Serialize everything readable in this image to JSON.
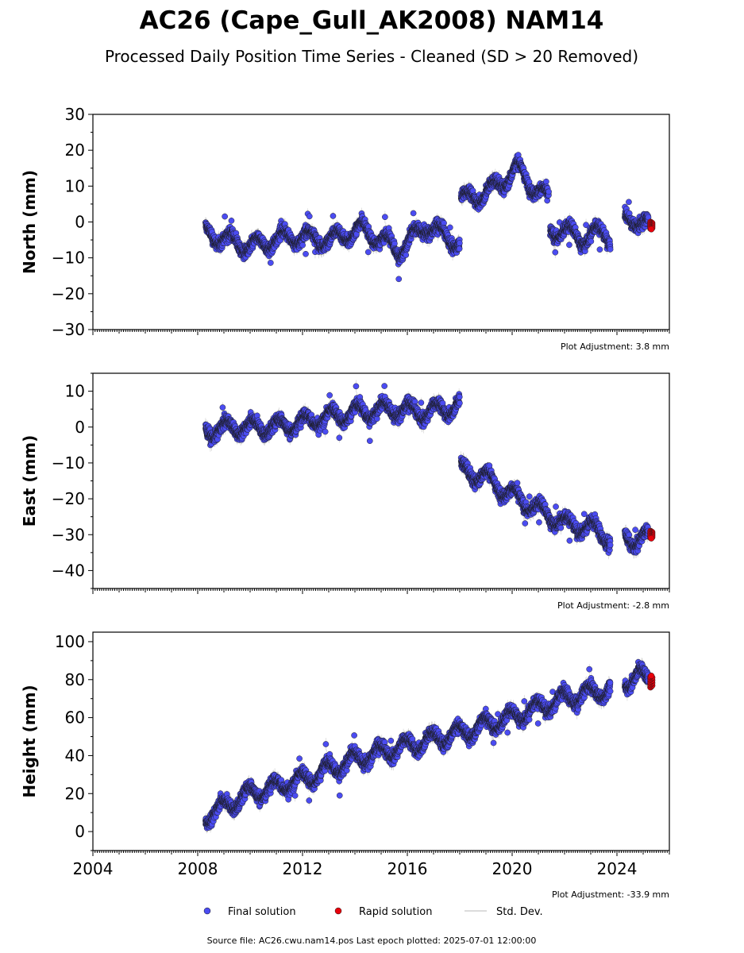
{
  "title": "AC26 (Cape_Gull_AK2008) NAM14",
  "subtitle": "Processed Daily Position Time Series - Cleaned (SD > 20 Removed)",
  "legend": {
    "final_label": "Final solution",
    "rapid_label": "Rapid solution",
    "sd_label": "Std. Dev."
  },
  "footer": "Source file: AC26.cwu.nam14.pos  Last epoch plotted: 2025-07-01 12:00:00",
  "colors": {
    "final": "#4b4cf2",
    "final_edge": "#1a1a1a",
    "rapid": "#e8000b",
    "sd": "#b5b5b5",
    "axis": "#000000"
  },
  "chart_data": [
    {
      "type": "scatter",
      "panel": "north",
      "ylabel": "North (mm)",
      "ylim": [
        -30,
        30
      ],
      "yticks": [
        -30,
        -20,
        -10,
        0,
        10,
        20,
        30
      ],
      "ytick_labels": [
        "−30",
        "−20",
        "−10",
        "0",
        "10",
        "20",
        "30"
      ],
      "xlim": [
        2004,
        2026
      ],
      "adjustment": "Plot Adjustment: 3.8 mm",
      "segments": [
        {
          "x": [
            2008.3,
            2010.0,
            2011.5,
            2013.0,
            2014.3,
            2015.7,
            2016.7,
            2018.0
          ],
          "y": [
            -3,
            -7,
            -4,
            -5,
            -2,
            -8,
            -1,
            -6
          ]
        },
        {
          "x": [
            2018.05,
            2019.0,
            2019.6,
            2020.2,
            2020.8,
            2021.4
          ],
          "y": [
            6,
            8,
            11,
            15,
            10,
            6
          ]
        },
        {
          "x": [
            2021.45,
            2022.0,
            2022.6,
            2023.2,
            2023.75
          ],
          "y": [
            -3,
            -2,
            -5,
            -3,
            -4
          ]
        },
        {
          "x": [
            2024.3,
            2024.8,
            2025.2
          ],
          "y": [
            0,
            1,
            -1
          ]
        }
      ],
      "rapid": {
        "x": [
          2025.1,
          2025.35
        ],
        "y": [
          0,
          -2
        ]
      }
    },
    {
      "type": "scatter",
      "panel": "east",
      "ylabel": "East (mm)",
      "ylim": [
        -45,
        15
      ],
      "yticks": [
        -40,
        -30,
        -20,
        -10,
        0,
        10
      ],
      "ytick_labels": [
        "−40",
        "−30",
        "−20",
        "−10",
        "0",
        "10"
      ],
      "xlim": [
        2004,
        2026
      ],
      "adjustment": "Plot Adjustment: -2.8 mm",
      "segments": [
        {
          "x": [
            2008.3,
            2009.5,
            2011.0,
            2012.5,
            2014.0,
            2015.5,
            2016.7,
            2018.0
          ],
          "y": [
            -1,
            0,
            0,
            2,
            4,
            5,
            4,
            6
          ]
        },
        {
          "x": [
            2018.05,
            2019.0,
            2020.0,
            2021.0,
            2022.0,
            2023.0,
            2023.75
          ],
          "y": [
            -12,
            -14,
            -19,
            -23,
            -27,
            -28,
            -31
          ]
        },
        {
          "x": [
            2024.3,
            2024.8,
            2025.2
          ],
          "y": [
            -30,
            -32,
            -31
          ]
        }
      ],
      "rapid": {
        "x": [
          2025.1,
          2025.35
        ],
        "y": [
          -29,
          -31
        ]
      }
    },
    {
      "type": "scatter",
      "panel": "height",
      "ylabel": "Height (mm)",
      "ylim": [
        -10,
        105
      ],
      "yticks": [
        0,
        20,
        40,
        60,
        80,
        100
      ],
      "ytick_labels": [
        "0",
        "20",
        "40",
        "60",
        "80",
        "100"
      ],
      "xlim": [
        2004,
        2026
      ],
      "xticks": [
        2004,
        2008,
        2012,
        2016,
        2020,
        2024
      ],
      "xtick_labels": [
        "2004",
        "2008",
        "2012",
        "2016",
        "2020",
        "2024"
      ],
      "adjustment": "Plot Adjustment: -33.9 mm",
      "segments": [
        {
          "x": [
            2008.3,
            2010.0,
            2012.0,
            2014.0,
            2016.0,
            2018.0,
            2020.0,
            2022.0,
            2023.75
          ],
          "y": [
            8,
            20,
            27,
            38,
            45,
            52,
            60,
            70,
            75
          ]
        },
        {
          "x": [
            2024.3,
            2024.8,
            2025.2
          ],
          "y": [
            79,
            82,
            80
          ]
        }
      ],
      "rapid": {
        "x": [
          2025.1,
          2025.35
        ],
        "y": [
          76,
          82
        ]
      }
    }
  ]
}
